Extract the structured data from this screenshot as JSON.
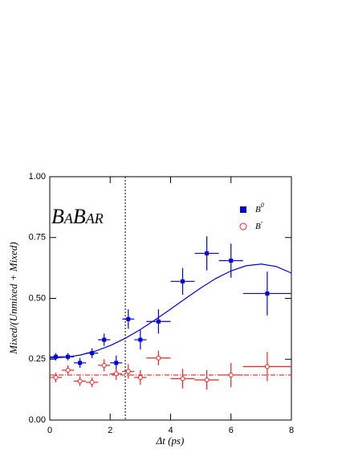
{
  "chart_data": {
    "type": "errorbar",
    "logo": "BaBar",
    "xlabel": "Δt (ps)",
    "ylabel": "Mixed/(Unmixed + Mixed)",
    "xlim": [
      0,
      8
    ],
    "xticks": [
      0,
      2,
      4,
      6,
      8
    ],
    "ylim": [
      0,
      1
    ],
    "yticks": [
      {
        "value": 0,
        "label": "0.00"
      },
      {
        "value": 0.25,
        "label": "0.25"
      },
      {
        "value": 0.5,
        "label": "0.50"
      },
      {
        "value": 0.75,
        "label": "0.75"
      },
      {
        "value": 1,
        "label": "1.00"
      }
    ],
    "reference_x": 2.5,
    "series": [
      {
        "name": "B",
        "name_sup": "0",
        "color": "#0000dd",
        "marker": "square",
        "x": [
          0.2,
          0.6,
          1.0,
          1.4,
          1.8,
          2.2,
          2.6,
          3.0,
          3.6,
          4.4,
          5.2,
          6.0,
          7.2
        ],
        "xerr": [
          0.2,
          0.2,
          0.2,
          0.2,
          0.2,
          0.2,
          0.2,
          0.2,
          0.4,
          0.4,
          0.4,
          0.4,
          0.8
        ],
        "values": [
          0.26,
          0.26,
          0.235,
          0.275,
          0.33,
          0.235,
          0.415,
          0.33,
          0.405,
          0.57,
          0.685,
          0.655,
          0.52
        ],
        "yerr": [
          0.015,
          0.015,
          0.02,
          0.02,
          0.025,
          0.03,
          0.04,
          0.04,
          0.05,
          0.055,
          0.07,
          0.07,
          0.09
        ],
        "fit": {
          "style": "solid",
          "x": [
            0,
            0.5,
            1,
            1.5,
            2,
            2.5,
            3,
            3.5,
            4,
            4.5,
            5,
            5.5,
            6,
            6.5,
            7,
            7.5,
            8
          ],
          "y": [
            0.255,
            0.258,
            0.267,
            0.283,
            0.306,
            0.336,
            0.372,
            0.413,
            0.456,
            0.5,
            0.543,
            0.582,
            0.613,
            0.634,
            0.641,
            0.631,
            0.604
          ]
        }
      },
      {
        "name": "B",
        "name_sup": "-",
        "color": "#ee2222",
        "marker": "circle",
        "x": [
          0.2,
          0.6,
          1.0,
          1.4,
          1.8,
          2.2,
          2.6,
          3.0,
          3.6,
          4.4,
          5.2,
          6.0,
          7.2
        ],
        "xerr": [
          0.2,
          0.2,
          0.2,
          0.2,
          0.2,
          0.2,
          0.2,
          0.2,
          0.4,
          0.4,
          0.4,
          0.4,
          0.8
        ],
        "values": [
          0.175,
          0.205,
          0.16,
          0.155,
          0.225,
          0.19,
          0.2,
          0.175,
          0.255,
          0.17,
          0.165,
          0.185,
          0.22
        ],
        "yerr": [
          0.02,
          0.02,
          0.02,
          0.02,
          0.025,
          0.025,
          0.03,
          0.03,
          0.03,
          0.04,
          0.04,
          0.05,
          0.06
        ],
        "fit": {
          "style": "dashdot",
          "x": [
            0,
            8
          ],
          "y": [
            0.185,
            0.185
          ]
        }
      }
    ]
  }
}
